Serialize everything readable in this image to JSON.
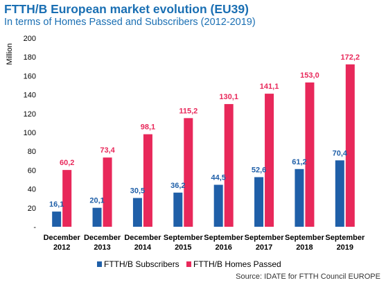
{
  "chart_data": {
    "type": "bar",
    "title": "FTTH/B European market evolution (EU39)",
    "subtitle": "In terms of Homes Passed and Subscribers (2012-2019)",
    "ylabel": "Million",
    "xlabel": "",
    "ylim": [
      0,
      200
    ],
    "yticks": [
      "-",
      "20",
      "40",
      "60",
      "80",
      "100",
      "120",
      "140",
      "160",
      "180",
      "200"
    ],
    "categories": [
      [
        "December",
        "2012"
      ],
      [
        "December",
        "2013"
      ],
      [
        "December",
        "2014"
      ],
      [
        "September",
        "2015"
      ],
      [
        "September",
        "2016"
      ],
      [
        "September",
        "2017"
      ],
      [
        "September",
        "2018"
      ],
      [
        "September",
        "2019"
      ]
    ],
    "series": [
      {
        "name": "FTTH/B Subscribers",
        "color": "#1f5fa8",
        "values": [
          16.1,
          20.1,
          30.5,
          36.2,
          44.5,
          52.6,
          61.2,
          70.4
        ],
        "labels": [
          "16,1",
          "20,1",
          "30,5",
          "36,2",
          "44,5",
          "52,6",
          "61,2",
          "70,4"
        ]
      },
      {
        "name": "FTTH/B Homes Passed",
        "color": "#e8285a",
        "values": [
          60.2,
          73.4,
          98.1,
          115.2,
          130.1,
          141.1,
          153.0,
          172.2
        ],
        "labels": [
          "60,2",
          "73,4",
          "98,1",
          "115,2",
          "130,1",
          "141,1",
          "153,0",
          "172,2"
        ]
      }
    ],
    "legend": "bottom",
    "grid": false,
    "source": "Source: IDATE for FTTH Council EUROPE"
  }
}
